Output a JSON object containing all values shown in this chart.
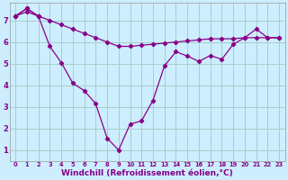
{
  "background_color": "#cceeff",
  "grid_color": "#aacccc",
  "line_color": "#880088",
  "xlabel": "Windchill (Refroidissement éolien,°C)",
  "xlabel_fontsize": 6.5,
  "ylabel_ticks": [
    1,
    2,
    3,
    4,
    5,
    6,
    7
  ],
  "x_ticks": [
    0,
    1,
    2,
    3,
    4,
    5,
    6,
    7,
    8,
    9,
    10,
    11,
    12,
    13,
    14,
    15,
    16,
    17,
    18,
    19,
    20,
    21,
    22,
    23
  ],
  "xlim": [
    -0.5,
    23.5
  ],
  "ylim": [
    0.5,
    7.8
  ],
  "series1_x": [
    0,
    1,
    2
  ],
  "series1_y": [
    7.2,
    7.55,
    7.2
  ],
  "series2_x": [
    0,
    1,
    2,
    3,
    4,
    5,
    6,
    7,
    8,
    9,
    10,
    11,
    12,
    13,
    14,
    15,
    16,
    17,
    18,
    19,
    20,
    21,
    22,
    23
  ],
  "series2_y": [
    7.2,
    7.55,
    7.2,
    5.8,
    5.05,
    4.1,
    3.75,
    3.15,
    1.55,
    1.0,
    2.2,
    2.35,
    3.3,
    4.9,
    5.55,
    5.35,
    5.1,
    5.38,
    5.2,
    5.9,
    6.2,
    6.6,
    6.2,
    6.2
  ],
  "series3_x": [
    0,
    1,
    2,
    3,
    4,
    5,
    6,
    7,
    8,
    9,
    10,
    11,
    12,
    13,
    14,
    15,
    16,
    17,
    18,
    19,
    20,
    21,
    22,
    23
  ],
  "series3_y": [
    7.2,
    7.4,
    7.2,
    7.0,
    6.8,
    6.6,
    6.4,
    6.2,
    6.0,
    5.8,
    5.8,
    5.85,
    5.9,
    5.95,
    6.0,
    6.05,
    6.1,
    6.15,
    6.15,
    6.15,
    6.2,
    6.2,
    6.2,
    6.2
  ]
}
